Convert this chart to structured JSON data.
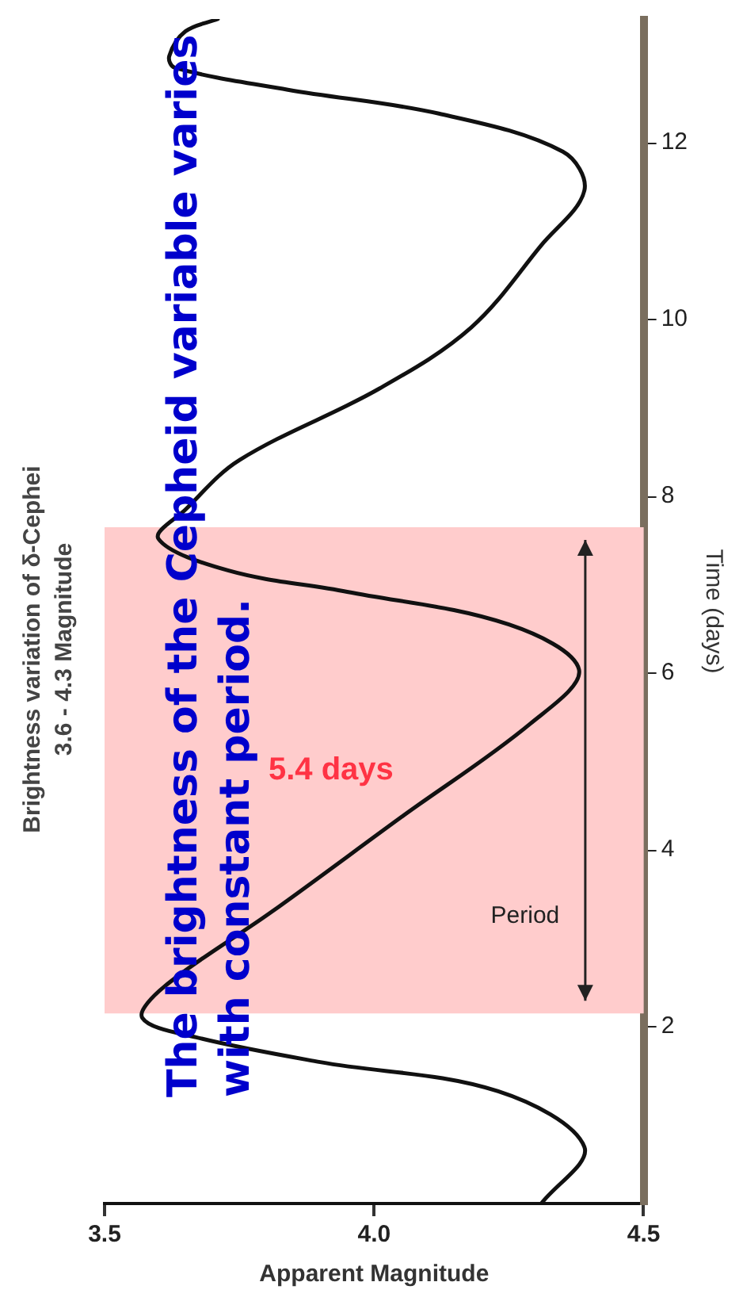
{
  "chart_data": {
    "type": "line",
    "title": "Brightness variation of δ-Cephei",
    "subtitle": "3.6 - 4.3 Magnitude",
    "xlabel": "Apparent Magnitude",
    "ylabel": "Time (days)",
    "series": [
      {
        "color": "#111111",
        "x": [
          4.31,
          4.39,
          4.23,
          3.9,
          3.67,
          3.57,
          3.61,
          3.81,
          4.05,
          4.29,
          4.38,
          4.25,
          3.95,
          3.73,
          3.6,
          3.65,
          3.75,
          4.01,
          4.18,
          4.31,
          4.39,
          4.35,
          4.12,
          3.84,
          3.63,
          3.62,
          3.65,
          3.71
        ],
        "values": [
          0,
          0.64,
          1.27,
          1.6,
          1.88,
          2.1,
          2.45,
          3.3,
          4.37,
          5.43,
          6.04,
          6.55,
          6.92,
          7.16,
          7.52,
          7.85,
          8.41,
          9.22,
          9.91,
          10.84,
          11.46,
          11.9,
          12.33,
          12.6,
          12.85,
          12.98,
          13.26,
          13.4
        ]
      }
    ],
    "xlim": [
      3.5,
      4.5
    ],
    "xticks": [
      {
        "value": 3.5,
        "label": "3.5"
      },
      {
        "value": 4.0,
        "label": "4.0"
      },
      {
        "value": 4.5,
        "label": "4.5"
      }
    ],
    "ylim": [
      0,
      13.4
    ],
    "yticks": [
      2,
      4,
      6,
      8,
      10,
      12
    ],
    "bands": [
      {
        "axis": "y",
        "from": 2.15,
        "to": 7.65,
        "color": "#ffcccc"
      }
    ],
    "annotations": [
      "The brightness of the Cepheid variable varies with constant period.",
      "5.4 days",
      "Period"
    ],
    "grid": false,
    "legend": false,
    "marker": "none",
    "line_style": "solid"
  }
}
